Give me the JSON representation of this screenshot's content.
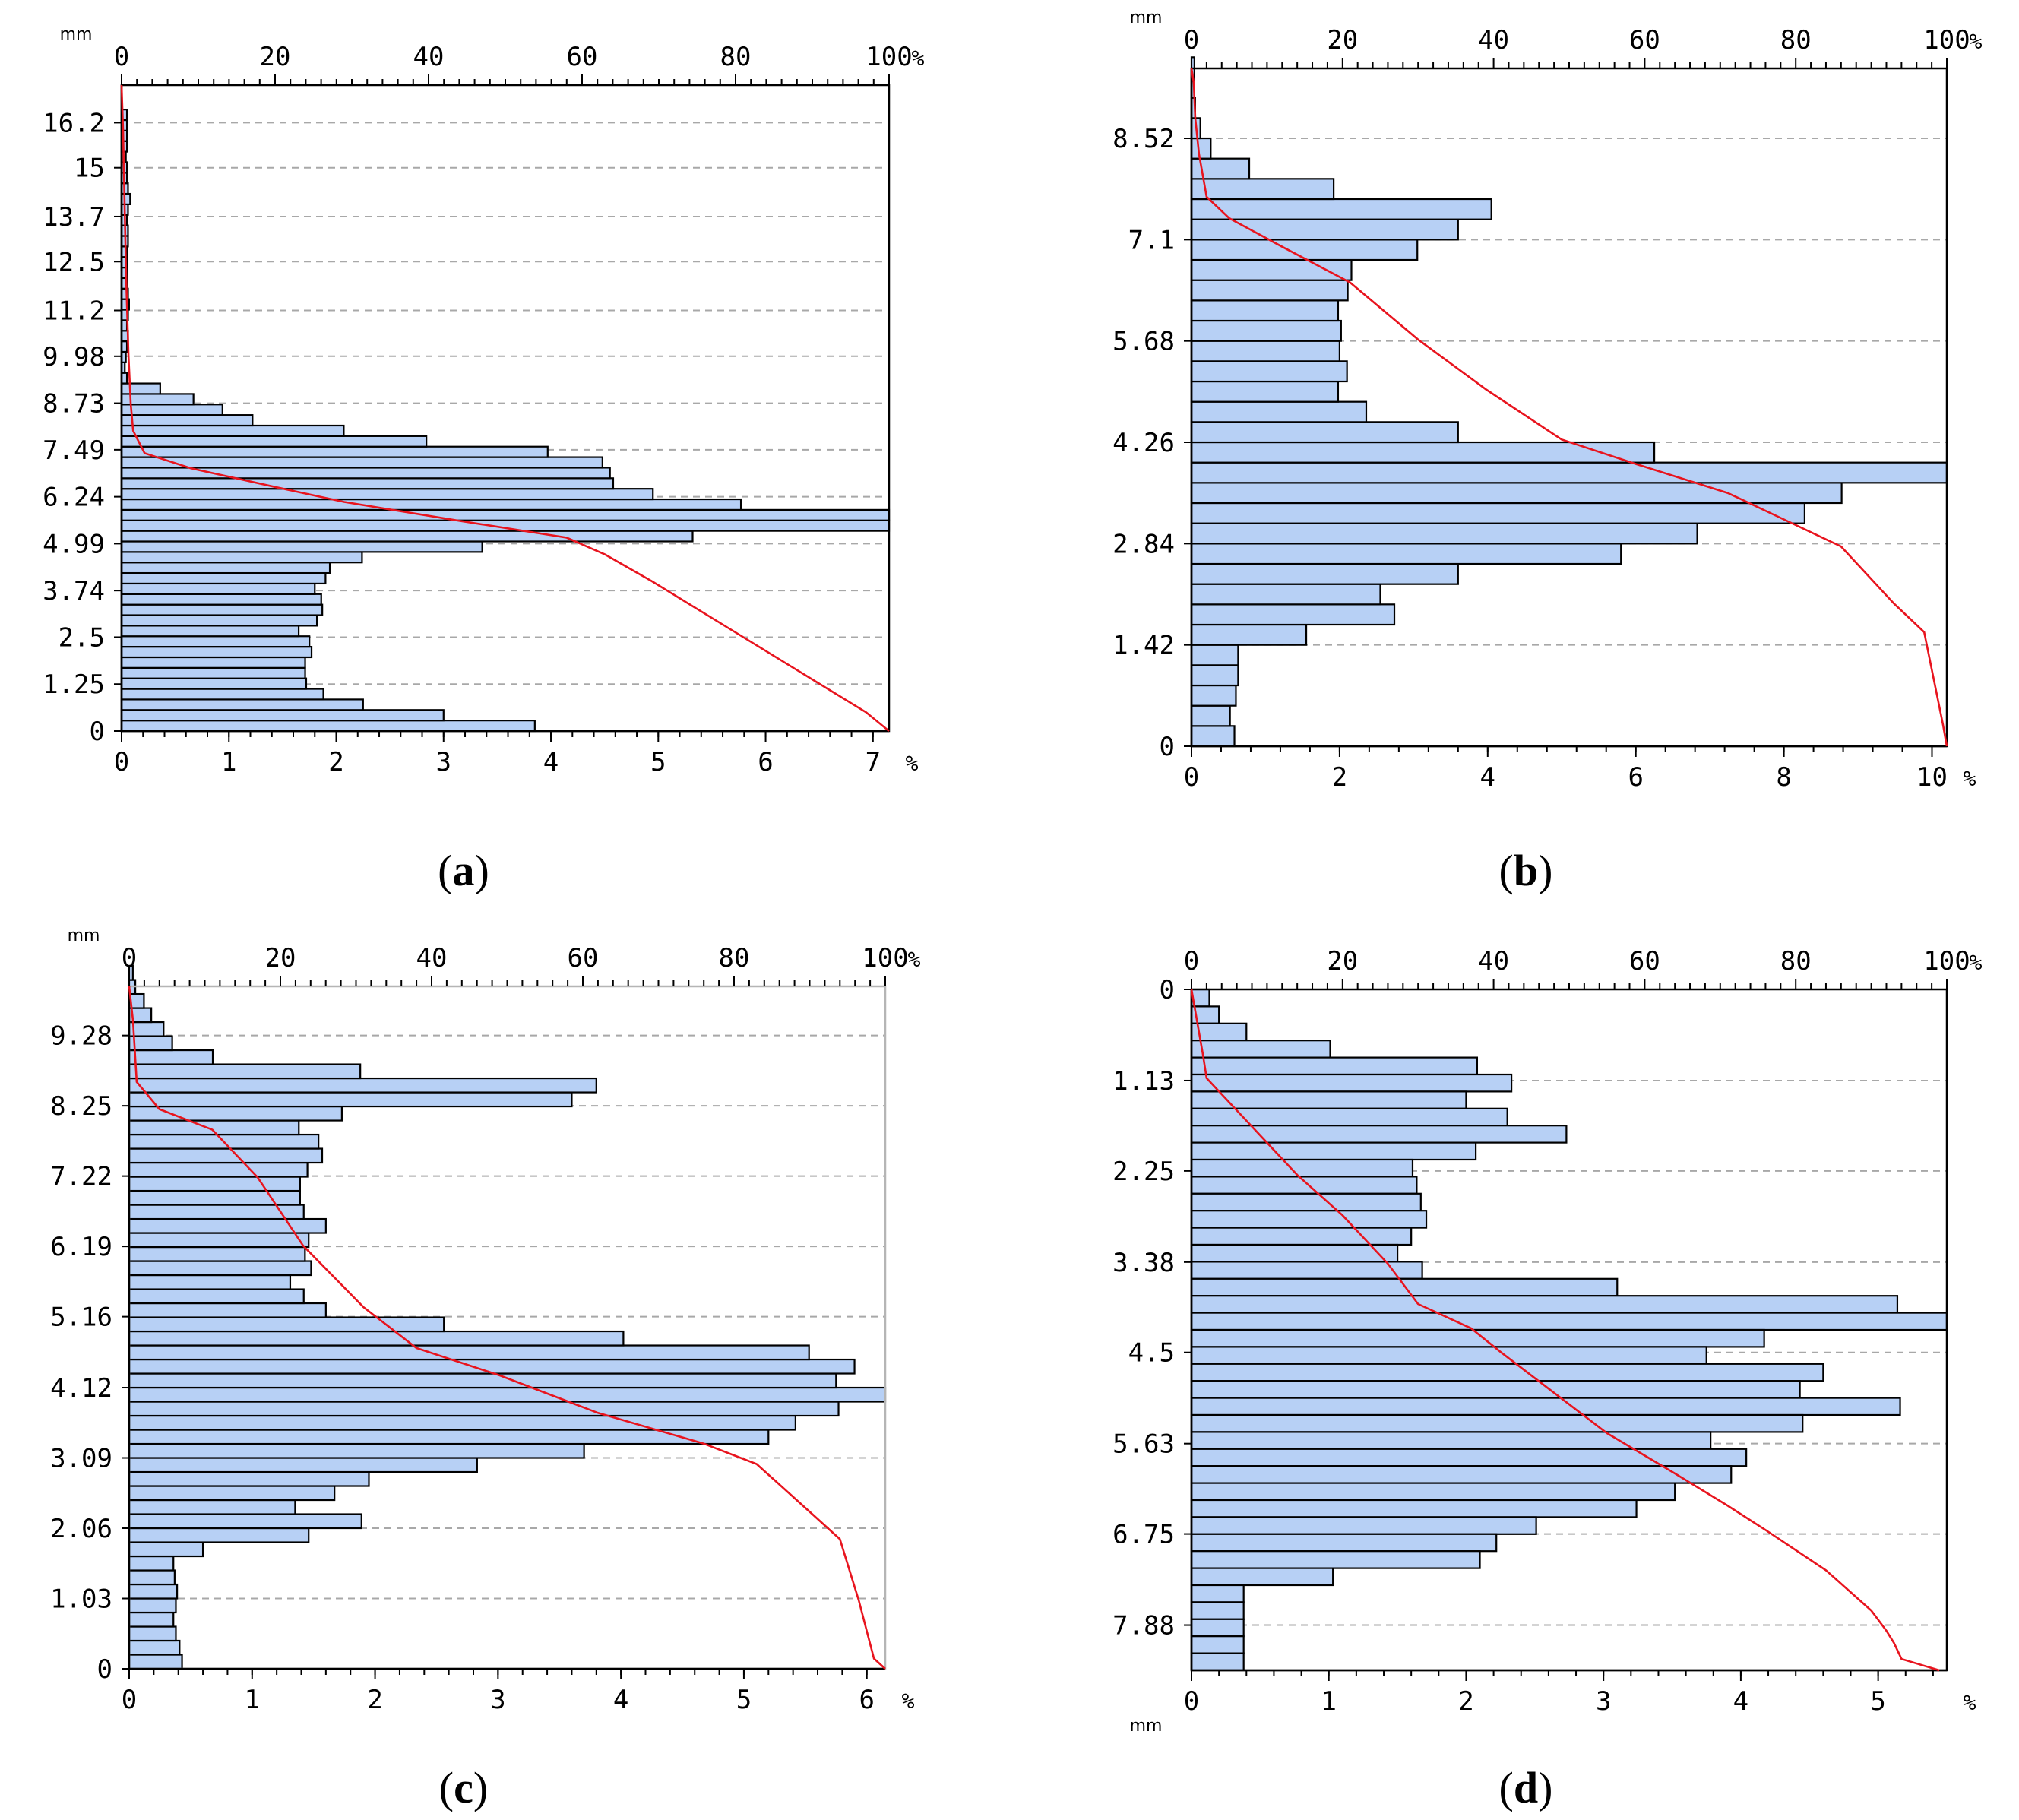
{
  "colors": {
    "bar_fill": "#b7d0f5",
    "cumulative_line": "#e8141e",
    "grid": "#a8a8a8"
  },
  "chart_data": [
    {
      "id": "a",
      "type": "bar",
      "orientation": "horizontal",
      "caption": "a",
      "unit_size": "mm",
      "unit_pct": "%",
      "y_axis_direction": "up",
      "size_range": [
        0,
        17.2
      ],
      "size_ticks": [
        0,
        1.25,
        2.5,
        3.74,
        4.99,
        6.24,
        7.49,
        8.73,
        9.98,
        11.2,
        12.5,
        13.7,
        15,
        16.2
      ],
      "size_tick_labels": [
        "0",
        "1.25",
        "2.5",
        "3.74",
        "4.99",
        "6.24",
        "7.49",
        "8.73",
        "9.98",
        "11.2",
        "12.5",
        "13.7",
        "15",
        "16.2"
      ],
      "freq_range": [
        0,
        7.15
      ],
      "freq_ticks": [
        0,
        1,
        2,
        3,
        4,
        5,
        6,
        7
      ],
      "freq_tick_labels": [
        "0",
        "1",
        "2",
        "3",
        "4",
        "5",
        "6",
        "7"
      ],
      "cum_ticks": [
        0,
        20,
        40,
        60,
        80,
        100
      ],
      "cum_tick_labels": [
        "0",
        "20",
        "40",
        "60",
        "80",
        "100"
      ],
      "bin_width": 0.2805,
      "values": [
        3.85,
        3.0,
        2.25,
        1.88,
        1.72,
        1.71,
        1.71,
        1.77,
        1.75,
        1.65,
        1.82,
        1.87,
        1.86,
        1.8,
        1.9,
        1.94,
        2.24,
        3.36,
        5.32,
        7.15,
        7.15,
        5.77,
        4.95,
        4.58,
        4.55,
        4.48,
        3.97,
        2.84,
        2.07,
        1.22,
        0.94,
        0.67,
        0.36,
        0.05,
        0.03,
        0.04,
        0.05,
        0.06,
        0.05,
        0.06,
        0.07,
        0.06,
        0.05,
        0.05,
        0.05,
        0.05,
        0.06,
        0.06,
        0.05,
        0.06,
        0.08,
        0.06,
        0.05,
        0.05,
        0.04,
        0.05,
        0.05,
        0.05,
        0.05
      ],
      "cumulative": [
        [
          0,
          100
        ],
        [
          0.5,
          97
        ],
        [
          1.0,
          93
        ],
        [
          2.0,
          85
        ],
        [
          3.0,
          77
        ],
        [
          4.0,
          69
        ],
        [
          4.7,
          63
        ],
        [
          5.15,
          58
        ],
        [
          5.6,
          44
        ],
        [
          6.1,
          29
        ],
        [
          6.5,
          20
        ],
        [
          7.0,
          9
        ],
        [
          7.4,
          3
        ],
        [
          8.0,
          1.5
        ],
        [
          8.7,
          1.2
        ],
        [
          10,
          0.9
        ],
        [
          12,
          0.6
        ],
        [
          14,
          0.4
        ],
        [
          16,
          0.2
        ],
        [
          17.2,
          0
        ]
      ]
    },
    {
      "id": "b",
      "type": "bar",
      "orientation": "horizontal",
      "caption": "b",
      "unit_size": "mm",
      "unit_pct": "%",
      "y_axis_direction": "up",
      "size_range": [
        0,
        9.5
      ],
      "size_ticks": [
        0,
        1.42,
        2.84,
        4.26,
        5.68,
        7.1,
        8.52
      ],
      "size_tick_labels": [
        "0",
        "1.42",
        "2.84",
        "4.26",
        "5.68",
        "7.1",
        "8.52"
      ],
      "freq_range": [
        0,
        10.2
      ],
      "freq_ticks": [
        0,
        2,
        4,
        6,
        8,
        10
      ],
      "freq_tick_labels": [
        "0",
        "2",
        "4",
        "6",
        "8",
        "10"
      ],
      "cum_ticks": [
        0,
        20,
        40,
        60,
        80,
        100
      ],
      "cum_tick_labels": [
        "0",
        "20",
        "40",
        "60",
        "80",
        "100"
      ],
      "bin_width": 0.284,
      "values": [
        0.58,
        0.52,
        0.6,
        0.63,
        0.63,
        1.55,
        2.74,
        2.55,
        3.6,
        5.8,
        6.83,
        8.28,
        8.78,
        10.2,
        6.25,
        3.6,
        2.36,
        1.98,
        2.1,
        2.0,
        2.02,
        1.98,
        2.11,
        2.16,
        3.05,
        3.6,
        4.05,
        1.92,
        0.78,
        0.26,
        0.12,
        0.05,
        0.04,
        0.04
      ],
      "cumulative": [
        [
          0,
          100
        ],
        [
          0.3,
          99.5
        ],
        [
          1.6,
          97
        ],
        [
          2.0,
          93
        ],
        [
          2.8,
          86
        ],
        [
          3.2,
          78
        ],
        [
          3.55,
          71
        ],
        [
          3.95,
          59
        ],
        [
          4.3,
          49
        ],
        [
          5.0,
          39
        ],
        [
          5.7,
          30
        ],
        [
          6.5,
          21
        ],
        [
          7.0,
          12
        ],
        [
          7.4,
          5
        ],
        [
          7.7,
          2
        ],
        [
          8.3,
          1
        ],
        [
          8.8,
          0.5
        ],
        [
          9.3,
          0.3
        ],
        [
          9.5,
          0
        ]
      ]
    },
    {
      "id": "c",
      "type": "bar",
      "orientation": "horizontal",
      "caption": "c",
      "unit_size": "mm",
      "unit_pct": "%",
      "y_axis_direction": "up",
      "size_range": [
        0,
        10.0
      ],
      "size_ticks": [
        0,
        1.03,
        2.06,
        3.09,
        4.12,
        5.16,
        6.19,
        7.22,
        8.25,
        9.28
      ],
      "size_tick_labels": [
        "0",
        "1.03",
        "2.06",
        "3.09",
        "4.12",
        "5.16",
        "6.19",
        "7.22",
        "8.25",
        "9.28"
      ],
      "freq_range": [
        0,
        6.15
      ],
      "freq_ticks": [
        0,
        1,
        2,
        3,
        4,
        5,
        6
      ],
      "freq_tick_labels": [
        "0",
        "1",
        "2",
        "3",
        "4",
        "5",
        "6"
      ],
      "cum_ticks": [
        0,
        20,
        40,
        60,
        80,
        100
      ],
      "cum_tick_labels": [
        "0",
        "20",
        "40",
        "60",
        "80",
        "100"
      ],
      "bin_width": 0.206,
      "values": [
        0.43,
        0.41,
        0.38,
        0.36,
        0.38,
        0.39,
        0.37,
        0.36,
        0.6,
        1.46,
        1.89,
        1.35,
        1.67,
        1.95,
        2.83,
        3.7,
        5.2,
        5.42,
        5.77,
        6.15,
        5.75,
        5.9,
        5.53,
        4.02,
        2.56,
        1.6,
        1.42,
        1.31,
        1.48,
        1.43,
        1.46,
        1.6,
        1.42,
        1.39,
        1.39,
        1.45,
        1.57,
        1.54,
        1.38,
        1.73,
        3.6,
        3.8,
        1.88,
        0.68,
        0.35,
        0.28,
        0.18,
        0.12,
        0.05,
        0.03
      ],
      "cumulative": [
        [
          0,
          100
        ],
        [
          0.15,
          98.5
        ],
        [
          1.0,
          96.5
        ],
        [
          1.9,
          94
        ],
        [
          2.2,
          91
        ],
        [
          3.0,
          83
        ],
        [
          3.3,
          76
        ],
        [
          3.75,
          62
        ],
        [
          4.3,
          49
        ],
        [
          4.7,
          38
        ],
        [
          5.3,
          31
        ],
        [
          6.2,
          23
        ],
        [
          7.2,
          17
        ],
        [
          7.9,
          11
        ],
        [
          8.2,
          4
        ],
        [
          8.6,
          1
        ],
        [
          9.5,
          0.5
        ],
        [
          10.0,
          0
        ]
      ]
    },
    {
      "id": "d",
      "type": "bar",
      "orientation": "horizontal",
      "caption": "d",
      "unit_size": "mm",
      "unit_pct": "%",
      "y_axis_direction": "down",
      "size_range": [
        0,
        8.44
      ],
      "size_ticks": [
        0,
        1.13,
        2.25,
        3.38,
        4.5,
        5.63,
        6.75,
        7.88
      ],
      "size_tick_labels": [
        "0",
        "1.13",
        "2.25",
        "3.38",
        "4.5",
        "5.63",
        "6.75",
        "7.88"
      ],
      "freq_range": [
        0,
        5.5
      ],
      "freq_ticks": [
        0,
        1,
        2,
        3,
        4,
        5
      ],
      "freq_tick_labels": [
        "0",
        "1",
        "2",
        "3",
        "4",
        "5"
      ],
      "cum_ticks": [
        0,
        20,
        40,
        60,
        80,
        100
      ],
      "cum_tick_labels": [
        "0",
        "20",
        "40",
        "60",
        "80",
        "100"
      ],
      "bin_width": 0.211,
      "values": [
        0.13,
        0.2,
        0.4,
        1.01,
        2.08,
        2.33,
        2.0,
        2.3,
        2.73,
        2.07,
        1.61,
        1.64,
        1.67,
        1.71,
        1.6,
        1.5,
        1.68,
        3.1,
        5.14,
        5.5,
        4.17,
        3.75,
        4.6,
        4.43,
        5.16,
        4.45,
        3.78,
        4.04,
        3.93,
        3.52,
        3.24,
        2.51,
        2.22,
        2.1,
        1.03,
        0.38,
        0.38,
        0.38,
        0.38,
        0.38
      ],
      "cumulative": [
        [
          0,
          0
        ],
        [
          0.8,
          1.5
        ],
        [
          1.1,
          2
        ],
        [
          1.6,
          7
        ],
        [
          2.0,
          11
        ],
        [
          2.3,
          14
        ],
        [
          2.8,
          20
        ],
        [
          3.4,
          26
        ],
        [
          3.9,
          30
        ],
        [
          4.2,
          37
        ],
        [
          4.5,
          41
        ],
        [
          5.0,
          48
        ],
        [
          5.5,
          55
        ],
        [
          6.0,
          64
        ],
        [
          6.4,
          71
        ],
        [
          6.7,
          76
        ],
        [
          7.2,
          84
        ],
        [
          7.7,
          90
        ],
        [
          7.95,
          92
        ],
        [
          8.1,
          93
        ],
        [
          8.3,
          94
        ],
        [
          8.44,
          99
        ]
      ]
    }
  ]
}
